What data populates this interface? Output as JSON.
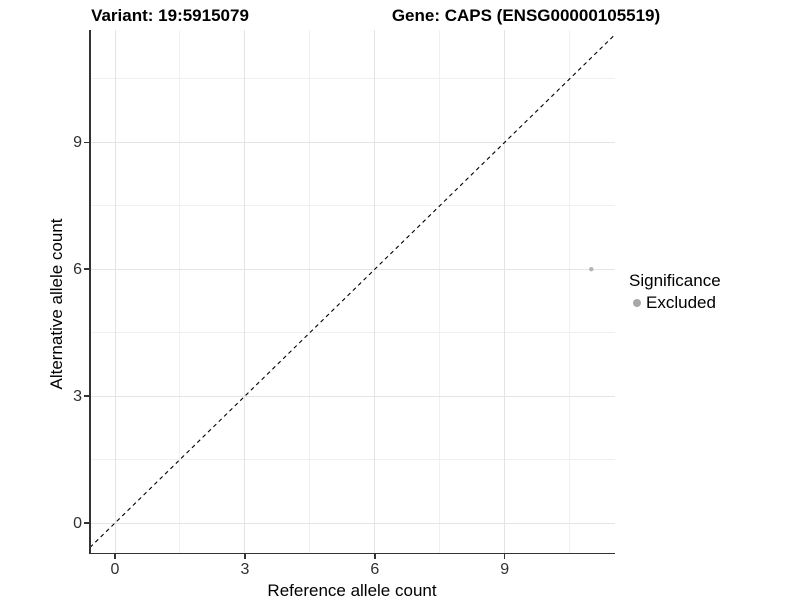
{
  "chart_data": {
    "type": "scatter",
    "titles": {
      "left": "Variant: 19:5915079",
      "right": "Gene: CAPS (ENSG00000105519)"
    },
    "xlabel": "Reference allele count",
    "ylabel": "Alternative allele count",
    "xticks": [
      0,
      3,
      6,
      9
    ],
    "yticks": [
      0,
      3,
      6,
      9
    ],
    "xlim": [
      -0.58,
      11.55
    ],
    "ylim": [
      -0.71,
      11.66
    ],
    "grid": "major and minor gridlines, light gray on white panel",
    "reference_line": {
      "type": "identity (y = x)",
      "style": "dashed",
      "color": "#000000"
    },
    "series": [
      {
        "name": "Excluded",
        "color": "#b4b4b4",
        "points": [
          {
            "x": 11,
            "y": 6
          }
        ]
      }
    ],
    "legend": {
      "title": "Significance",
      "position": "right",
      "items": [
        {
          "label": "Excluded",
          "color": "#a8a8a8",
          "marker": "circle"
        }
      ]
    }
  }
}
